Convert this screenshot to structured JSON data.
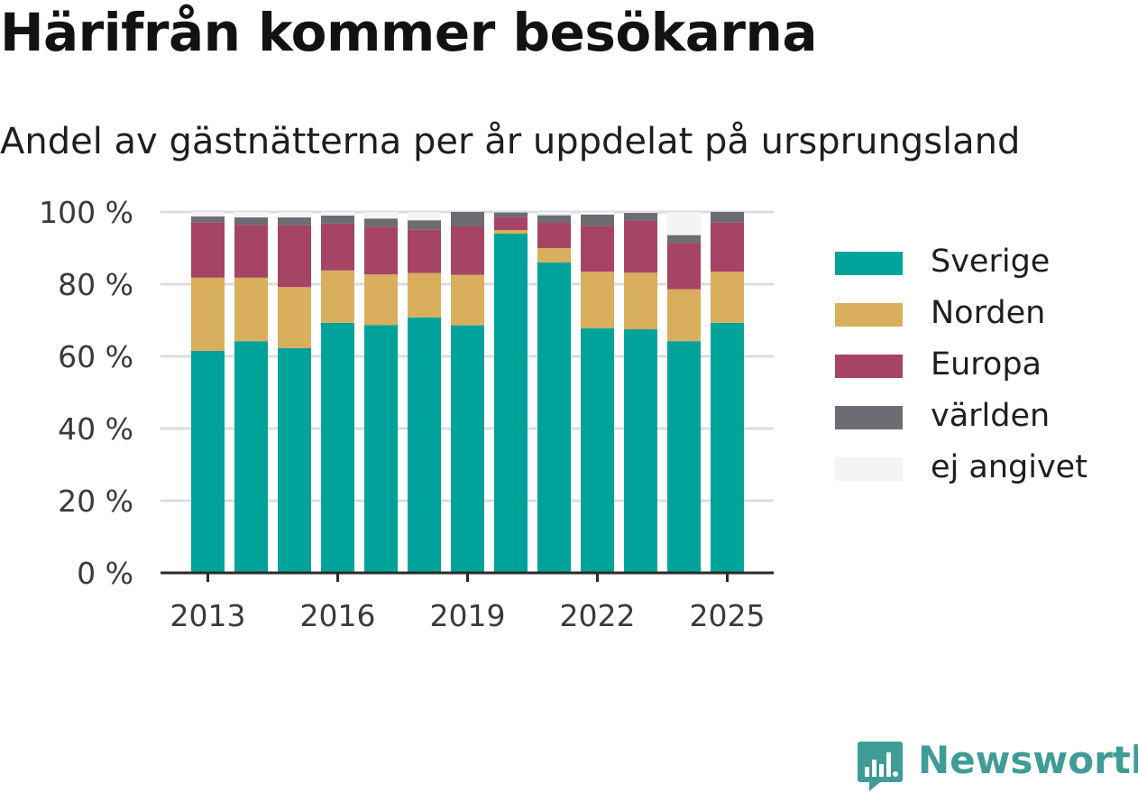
{
  "title": "Härifrån kommer besökarna",
  "subtitle": "Andel av gästnätterna per år uppdelat på ursprungsland",
  "brand": {
    "name": "Newsworthy"
  },
  "colors": {
    "Sverige": "#00a39a",
    "Norden": "#d9ae5c",
    "Europa": "#a64466",
    "världen": "#6c6c73",
    "ej angivet": "#f4f4f5"
  },
  "chart_data": {
    "type": "bar",
    "stacked": true,
    "categories": [
      "2013",
      "2014",
      "2015",
      "2016",
      "2017",
      "2018",
      "2019",
      "2020",
      "2021",
      "2022",
      "2023",
      "2024",
      "2025"
    ],
    "x_tick_labels": [
      "2013",
      "2016",
      "2019",
      "2022",
      "2025"
    ],
    "y_tick_labels": [
      "0 %",
      "20 %",
      "40 %",
      "60 %",
      "80 %",
      "100 %"
    ],
    "ylim": [
      0,
      100
    ],
    "grid": true,
    "legend_position": "right",
    "series": [
      {
        "name": "Sverige",
        "values": [
          61.5,
          64.2,
          62.3,
          69.3,
          68.7,
          70.8,
          68.6,
          94.0,
          86.0,
          67.8,
          67.5,
          64.2,
          69.3
        ]
      },
      {
        "name": "Norden",
        "values": [
          20.3,
          17.6,
          16.9,
          14.5,
          14.0,
          12.3,
          14.0,
          1.0,
          4.0,
          15.7,
          15.7,
          14.4,
          14.2
        ]
      },
      {
        "name": "Europa",
        "values": [
          15.3,
          14.6,
          17.1,
          13.0,
          13.2,
          12.1,
          13.4,
          3.6,
          7.0,
          12.6,
          14.4,
          12.8,
          13.6
        ]
      },
      {
        "name": "världen",
        "values": [
          1.7,
          2.1,
          2.2,
          2.2,
          2.3,
          2.5,
          4.0,
          1.3,
          2.1,
          3.2,
          2.2,
          2.2,
          2.9
        ]
      },
      {
        "name": "ej angivet",
        "values": [
          1.2,
          1.5,
          1.5,
          1.0,
          1.8,
          2.3,
          0.0,
          0.1,
          0.9,
          0.7,
          0.2,
          6.4,
          0.0
        ]
      }
    ]
  }
}
